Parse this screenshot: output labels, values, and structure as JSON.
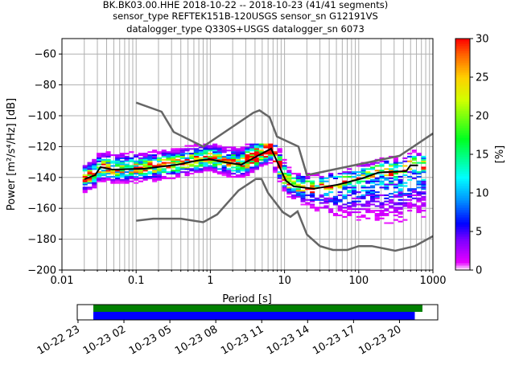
{
  "chart_data": {
    "type": "heatmap",
    "title_lines": [
      "BK.BK03.00.HHE   2018-10-22 -- 2018-10-23  (41/41 segments)",
      "sensor_type REFTEK151B-120USGS sensor_sn G12191VS",
      "datalogger_type Q330S+USGS datalogger_sn 6073"
    ],
    "xlabel": "Period [s]",
    "ylabel": "Power [m²/s⁴/Hz] [dB]",
    "xscale": "log",
    "xlim": [
      0.01,
      1000
    ],
    "ylim": [
      -200,
      -50
    ],
    "grid": true,
    "x_ticks": [
      {
        "value": 0.01,
        "label": "0.01"
      },
      {
        "value": 0.1,
        "label": "0.1"
      },
      {
        "value": 1,
        "label": "1"
      },
      {
        "value": 10,
        "label": "10"
      },
      {
        "value": 100,
        "label": "100"
      },
      {
        "value": 1000,
        "label": "1000"
      }
    ],
    "y_ticks": [
      {
        "value": -60,
        "label": "−60"
      },
      {
        "value": -80,
        "label": "−80"
      },
      {
        "value": -100,
        "label": "−100"
      },
      {
        "value": -120,
        "label": "−120"
      },
      {
        "value": -140,
        "label": "−140"
      },
      {
        "value": -160,
        "label": "−160"
      },
      {
        "value": -180,
        "label": "−180"
      },
      {
        "value": -200,
        "label": "−200"
      }
    ],
    "colorbar": {
      "label": "[%]",
      "range": [
        0,
        30
      ],
      "ticks": [
        {
          "value": 0,
          "label": "0"
        },
        {
          "value": 5,
          "label": "5"
        },
        {
          "value": 10,
          "label": "10"
        },
        {
          "value": 15,
          "label": "15"
        },
        {
          "value": 20,
          "label": "20"
        },
        {
          "value": 25,
          "label": "25"
        },
        {
          "value": 30,
          "label": "30"
        }
      ],
      "colormap_stops": [
        [
          0,
          "#ffffff"
        ],
        [
          1,
          "#e600ff"
        ],
        [
          4,
          "#7a00ff"
        ],
        [
          6,
          "#0000ff"
        ],
        [
          9,
          "#0090ff"
        ],
        [
          12,
          "#00ffff"
        ],
        [
          17,
          "#00ff20"
        ],
        [
          22,
          "#d0ff00"
        ],
        [
          25,
          "#ffd000"
        ],
        [
          28,
          "#ff6000"
        ],
        [
          30,
          "#ff0000"
        ]
      ]
    },
    "median_curve": {
      "period": [
        0.02,
        0.028,
        0.033,
        0.048,
        0.13,
        0.36,
        0.66,
        0.97,
        1.6,
        2.6,
        6.6,
        10.4,
        13.3,
        25,
        52,
        111,
        183,
        438,
        497,
        630
      ],
      "db": [
        -141.1,
        -138.5,
        -133.3,
        -134.9,
        -134.3,
        -131.7,
        -129.1,
        -128.1,
        -130.2,
        -131.7,
        -121.3,
        -142.1,
        -145.8,
        -147.3,
        -144.7,
        -140.6,
        -136.9,
        -135.9,
        -132.2,
        -132.2
      ]
    },
    "nhnm": {
      "period": [
        0.1,
        0.22,
        0.32,
        0.8,
        3.8,
        4.6,
        6.3,
        7.9,
        15.4,
        20,
        354.8,
        1000
      ],
      "db": [
        -91.5,
        -97.4,
        -110.5,
        -120,
        -98,
        -96.5,
        -101,
        -113.5,
        -120,
        -138.5,
        -126,
        -111.5
      ]
    },
    "nlnm": {
      "period": [
        0.1,
        0.17,
        0.4,
        0.8,
        1.24,
        2.4,
        4.1,
        4.9,
        6,
        9.5,
        12,
        15,
        20,
        30,
        45,
        70,
        100,
        150,
        310,
        570,
        1000
      ],
      "db": [
        -168,
        -166.7,
        -166.7,
        -169,
        -163.9,
        -148.4,
        -141,
        -141,
        -150,
        -162.5,
        -165.5,
        -162,
        -177,
        -184.5,
        -187,
        -187,
        -184.5,
        -184.5,
        -187.5,
        -184.5,
        -178
      ]
    },
    "timeline": {
      "x_ticks": [
        "10-22 23",
        "10-23 02",
        "10-23 05",
        "10-23 08",
        "10-23 11",
        "10-23 14",
        "10-23 17",
        "10-23 20"
      ],
      "tick_hours_from_start": [
        0,
        3,
        6,
        9,
        12,
        15,
        18,
        21
      ],
      "xlim_hours": [
        -0.05,
        23.5
      ],
      "data_available_hours": [
        1.0,
        22.5
      ],
      "used_segments_hours": [
        1.0,
        22.0
      ],
      "colors": {
        "available": "#008000",
        "used": "#0000ff"
      }
    },
    "colors": {
      "noise_model": "#666666",
      "median": "#000000",
      "grid": "#b0b0b0"
    }
  }
}
